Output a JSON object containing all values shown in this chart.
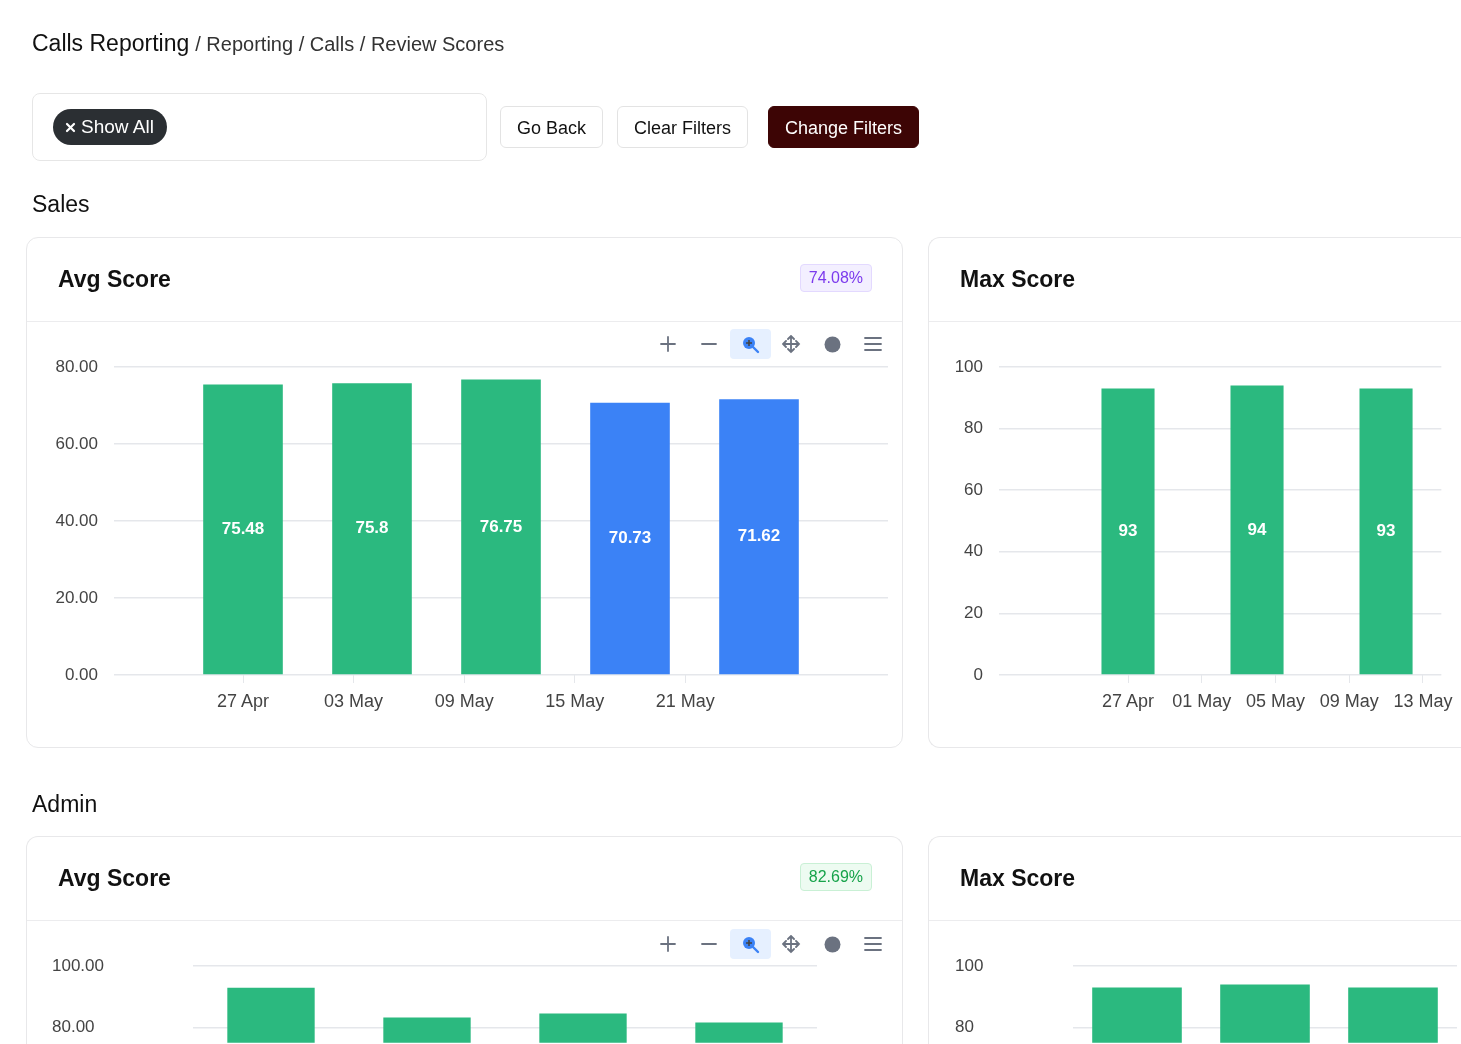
{
  "chart_data": [
    {
      "type": "other",
      "title": "Calls Reporting",
      "subtitle": "/ Reporting / Calls / Review Scores",
      "annotations": [
        "Show All",
        "Go Back",
        "Clear Filters",
        "Change Filters"
      ]
    },
    {
      "type": "other",
      "title": "Sales"
    },
    {
      "type": "bar",
      "title": "Avg Score",
      "annotations": [
        "74.08%"
      ],
      "x": [
        "--04-27",
        "--05-04",
        "--05-11",
        "--05-18",
        "--05-25"
      ],
      "values": [
        75.48,
        75.8,
        76.75,
        70.73,
        71.62
      ],
      "colors": [
        "#2bb97f",
        "#2bb97f",
        "#2bb97f",
        "#3b82f6",
        "#3b82f6"
      ],
      "data_labels": true,
      "xlim": [
        "--04-20",
        "--06-01"
      ],
      "xticks": [
        {
          "value": "--04-27",
          "label": "27 Apr"
        },
        {
          "value": "--05-03",
          "label": "03 May"
        },
        {
          "value": "--05-09",
          "label": "09 May"
        },
        {
          "value": "--05-15",
          "label": "15 May"
        },
        {
          "value": "--05-21",
          "label": "21 May"
        }
      ],
      "ylim": [
        0,
        80
      ],
      "yticks": [
        {
          "value": 0,
          "label": "0.00"
        },
        {
          "value": 20,
          "label": "20.00"
        },
        {
          "value": 40,
          "label": "40.00"
        },
        {
          "value": 60,
          "label": "60.00"
        },
        {
          "value": 80,
          "label": "80.00"
        }
      ],
      "grid": "y"
    },
    {
      "type": "bar",
      "title": "Max Score",
      "x": [
        "--04-27",
        "--05-04",
        "--05-11"
      ],
      "values": [
        93,
        94,
        93
      ],
      "colors": [
        "#2bb97f",
        "#2bb97f",
        "#2bb97f"
      ],
      "data_labels": true,
      "xlim": [
        "--04-20",
        "--05-14"
      ],
      "xticks": [
        {
          "value": "--04-27",
          "label": "27 Apr"
        },
        {
          "value": "--05-01",
          "label": "01 May"
        },
        {
          "value": "--05-05",
          "label": "05 May"
        },
        {
          "value": "--05-09",
          "label": "09 May"
        },
        {
          "value": "--05-13",
          "label": "13 May"
        }
      ],
      "ylim": [
        0,
        100
      ],
      "yticks": [
        0,
        20,
        40,
        60,
        80,
        100
      ],
      "grid": "y"
    },
    {
      "type": "other",
      "title": "Admin"
    },
    {
      "type": "bar",
      "title": "Avg Score",
      "annotations": [
        "82.69%"
      ],
      "categories": [
        null,
        null,
        null,
        null
      ],
      "values": [
        92.9,
        83.2,
        84.5,
        81.6
      ],
      "colors": [
        "#2bb97f",
        "#2bb97f",
        "#2bb97f",
        "#2bb97f"
      ],
      "ylim": [
        75,
        100
      ],
      "yticks": [
        {
          "value": 80,
          "label": "80.00"
        },
        {
          "value": 100,
          "label": "100.00"
        }
      ],
      "grid": "y",
      "tick_labels": "y"
    },
    {
      "type": "bar",
      "title": "Max Score",
      "categories": [
        null,
        null,
        null
      ],
      "values": [
        93,
        94,
        93
      ],
      "colors": [
        "#2bb97f",
        "#2bb97f",
        "#2bb97f"
      ],
      "ylim": [
        75,
        100
      ],
      "yticks": [
        80,
        100
      ],
      "grid": "y",
      "tick_labels": "y"
    }
  ]
}
